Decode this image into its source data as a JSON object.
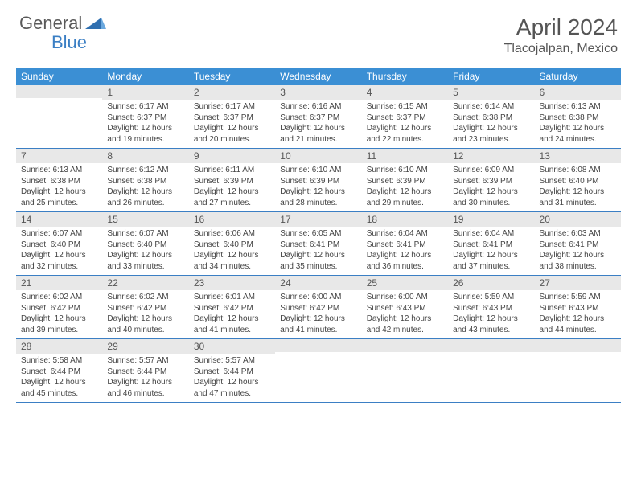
{
  "brand": {
    "text_gray": "General",
    "text_blue": "Blue"
  },
  "title": "April 2024",
  "location": "Tlacojalpan, Mexico",
  "colors": {
    "header_bg": "#3b8fd4",
    "header_text": "#ffffff",
    "border": "#3b7fc4",
    "daynum_bg": "#e8e8e8",
    "text": "#444444",
    "title_text": "#555555"
  },
  "weekdays": [
    "Sunday",
    "Monday",
    "Tuesday",
    "Wednesday",
    "Thursday",
    "Friday",
    "Saturday"
  ],
  "weeks": [
    [
      null,
      {
        "n": "1",
        "sr": "6:17 AM",
        "ss": "6:37 PM",
        "dl": "12 hours and 19 minutes."
      },
      {
        "n": "2",
        "sr": "6:17 AM",
        "ss": "6:37 PM",
        "dl": "12 hours and 20 minutes."
      },
      {
        "n": "3",
        "sr": "6:16 AM",
        "ss": "6:37 PM",
        "dl": "12 hours and 21 minutes."
      },
      {
        "n": "4",
        "sr": "6:15 AM",
        "ss": "6:37 PM",
        "dl": "12 hours and 22 minutes."
      },
      {
        "n": "5",
        "sr": "6:14 AM",
        "ss": "6:38 PM",
        "dl": "12 hours and 23 minutes."
      },
      {
        "n": "6",
        "sr": "6:13 AM",
        "ss": "6:38 PM",
        "dl": "12 hours and 24 minutes."
      }
    ],
    [
      {
        "n": "7",
        "sr": "6:13 AM",
        "ss": "6:38 PM",
        "dl": "12 hours and 25 minutes."
      },
      {
        "n": "8",
        "sr": "6:12 AM",
        "ss": "6:38 PM",
        "dl": "12 hours and 26 minutes."
      },
      {
        "n": "9",
        "sr": "6:11 AM",
        "ss": "6:39 PM",
        "dl": "12 hours and 27 minutes."
      },
      {
        "n": "10",
        "sr": "6:10 AM",
        "ss": "6:39 PM",
        "dl": "12 hours and 28 minutes."
      },
      {
        "n": "11",
        "sr": "6:10 AM",
        "ss": "6:39 PM",
        "dl": "12 hours and 29 minutes."
      },
      {
        "n": "12",
        "sr": "6:09 AM",
        "ss": "6:39 PM",
        "dl": "12 hours and 30 minutes."
      },
      {
        "n": "13",
        "sr": "6:08 AM",
        "ss": "6:40 PM",
        "dl": "12 hours and 31 minutes."
      }
    ],
    [
      {
        "n": "14",
        "sr": "6:07 AM",
        "ss": "6:40 PM",
        "dl": "12 hours and 32 minutes."
      },
      {
        "n": "15",
        "sr": "6:07 AM",
        "ss": "6:40 PM",
        "dl": "12 hours and 33 minutes."
      },
      {
        "n": "16",
        "sr": "6:06 AM",
        "ss": "6:40 PM",
        "dl": "12 hours and 34 minutes."
      },
      {
        "n": "17",
        "sr": "6:05 AM",
        "ss": "6:41 PM",
        "dl": "12 hours and 35 minutes."
      },
      {
        "n": "18",
        "sr": "6:04 AM",
        "ss": "6:41 PM",
        "dl": "12 hours and 36 minutes."
      },
      {
        "n": "19",
        "sr": "6:04 AM",
        "ss": "6:41 PM",
        "dl": "12 hours and 37 minutes."
      },
      {
        "n": "20",
        "sr": "6:03 AM",
        "ss": "6:41 PM",
        "dl": "12 hours and 38 minutes."
      }
    ],
    [
      {
        "n": "21",
        "sr": "6:02 AM",
        "ss": "6:42 PM",
        "dl": "12 hours and 39 minutes."
      },
      {
        "n": "22",
        "sr": "6:02 AM",
        "ss": "6:42 PM",
        "dl": "12 hours and 40 minutes."
      },
      {
        "n": "23",
        "sr": "6:01 AM",
        "ss": "6:42 PM",
        "dl": "12 hours and 41 minutes."
      },
      {
        "n": "24",
        "sr": "6:00 AM",
        "ss": "6:42 PM",
        "dl": "12 hours and 41 minutes."
      },
      {
        "n": "25",
        "sr": "6:00 AM",
        "ss": "6:43 PM",
        "dl": "12 hours and 42 minutes."
      },
      {
        "n": "26",
        "sr": "5:59 AM",
        "ss": "6:43 PM",
        "dl": "12 hours and 43 minutes."
      },
      {
        "n": "27",
        "sr": "5:59 AM",
        "ss": "6:43 PM",
        "dl": "12 hours and 44 minutes."
      }
    ],
    [
      {
        "n": "28",
        "sr": "5:58 AM",
        "ss": "6:44 PM",
        "dl": "12 hours and 45 minutes."
      },
      {
        "n": "29",
        "sr": "5:57 AM",
        "ss": "6:44 PM",
        "dl": "12 hours and 46 minutes."
      },
      {
        "n": "30",
        "sr": "5:57 AM",
        "ss": "6:44 PM",
        "dl": "12 hours and 47 minutes."
      },
      null,
      null,
      null,
      null
    ]
  ],
  "labels": {
    "sunrise": "Sunrise:",
    "sunset": "Sunset:",
    "daylight": "Daylight:"
  }
}
